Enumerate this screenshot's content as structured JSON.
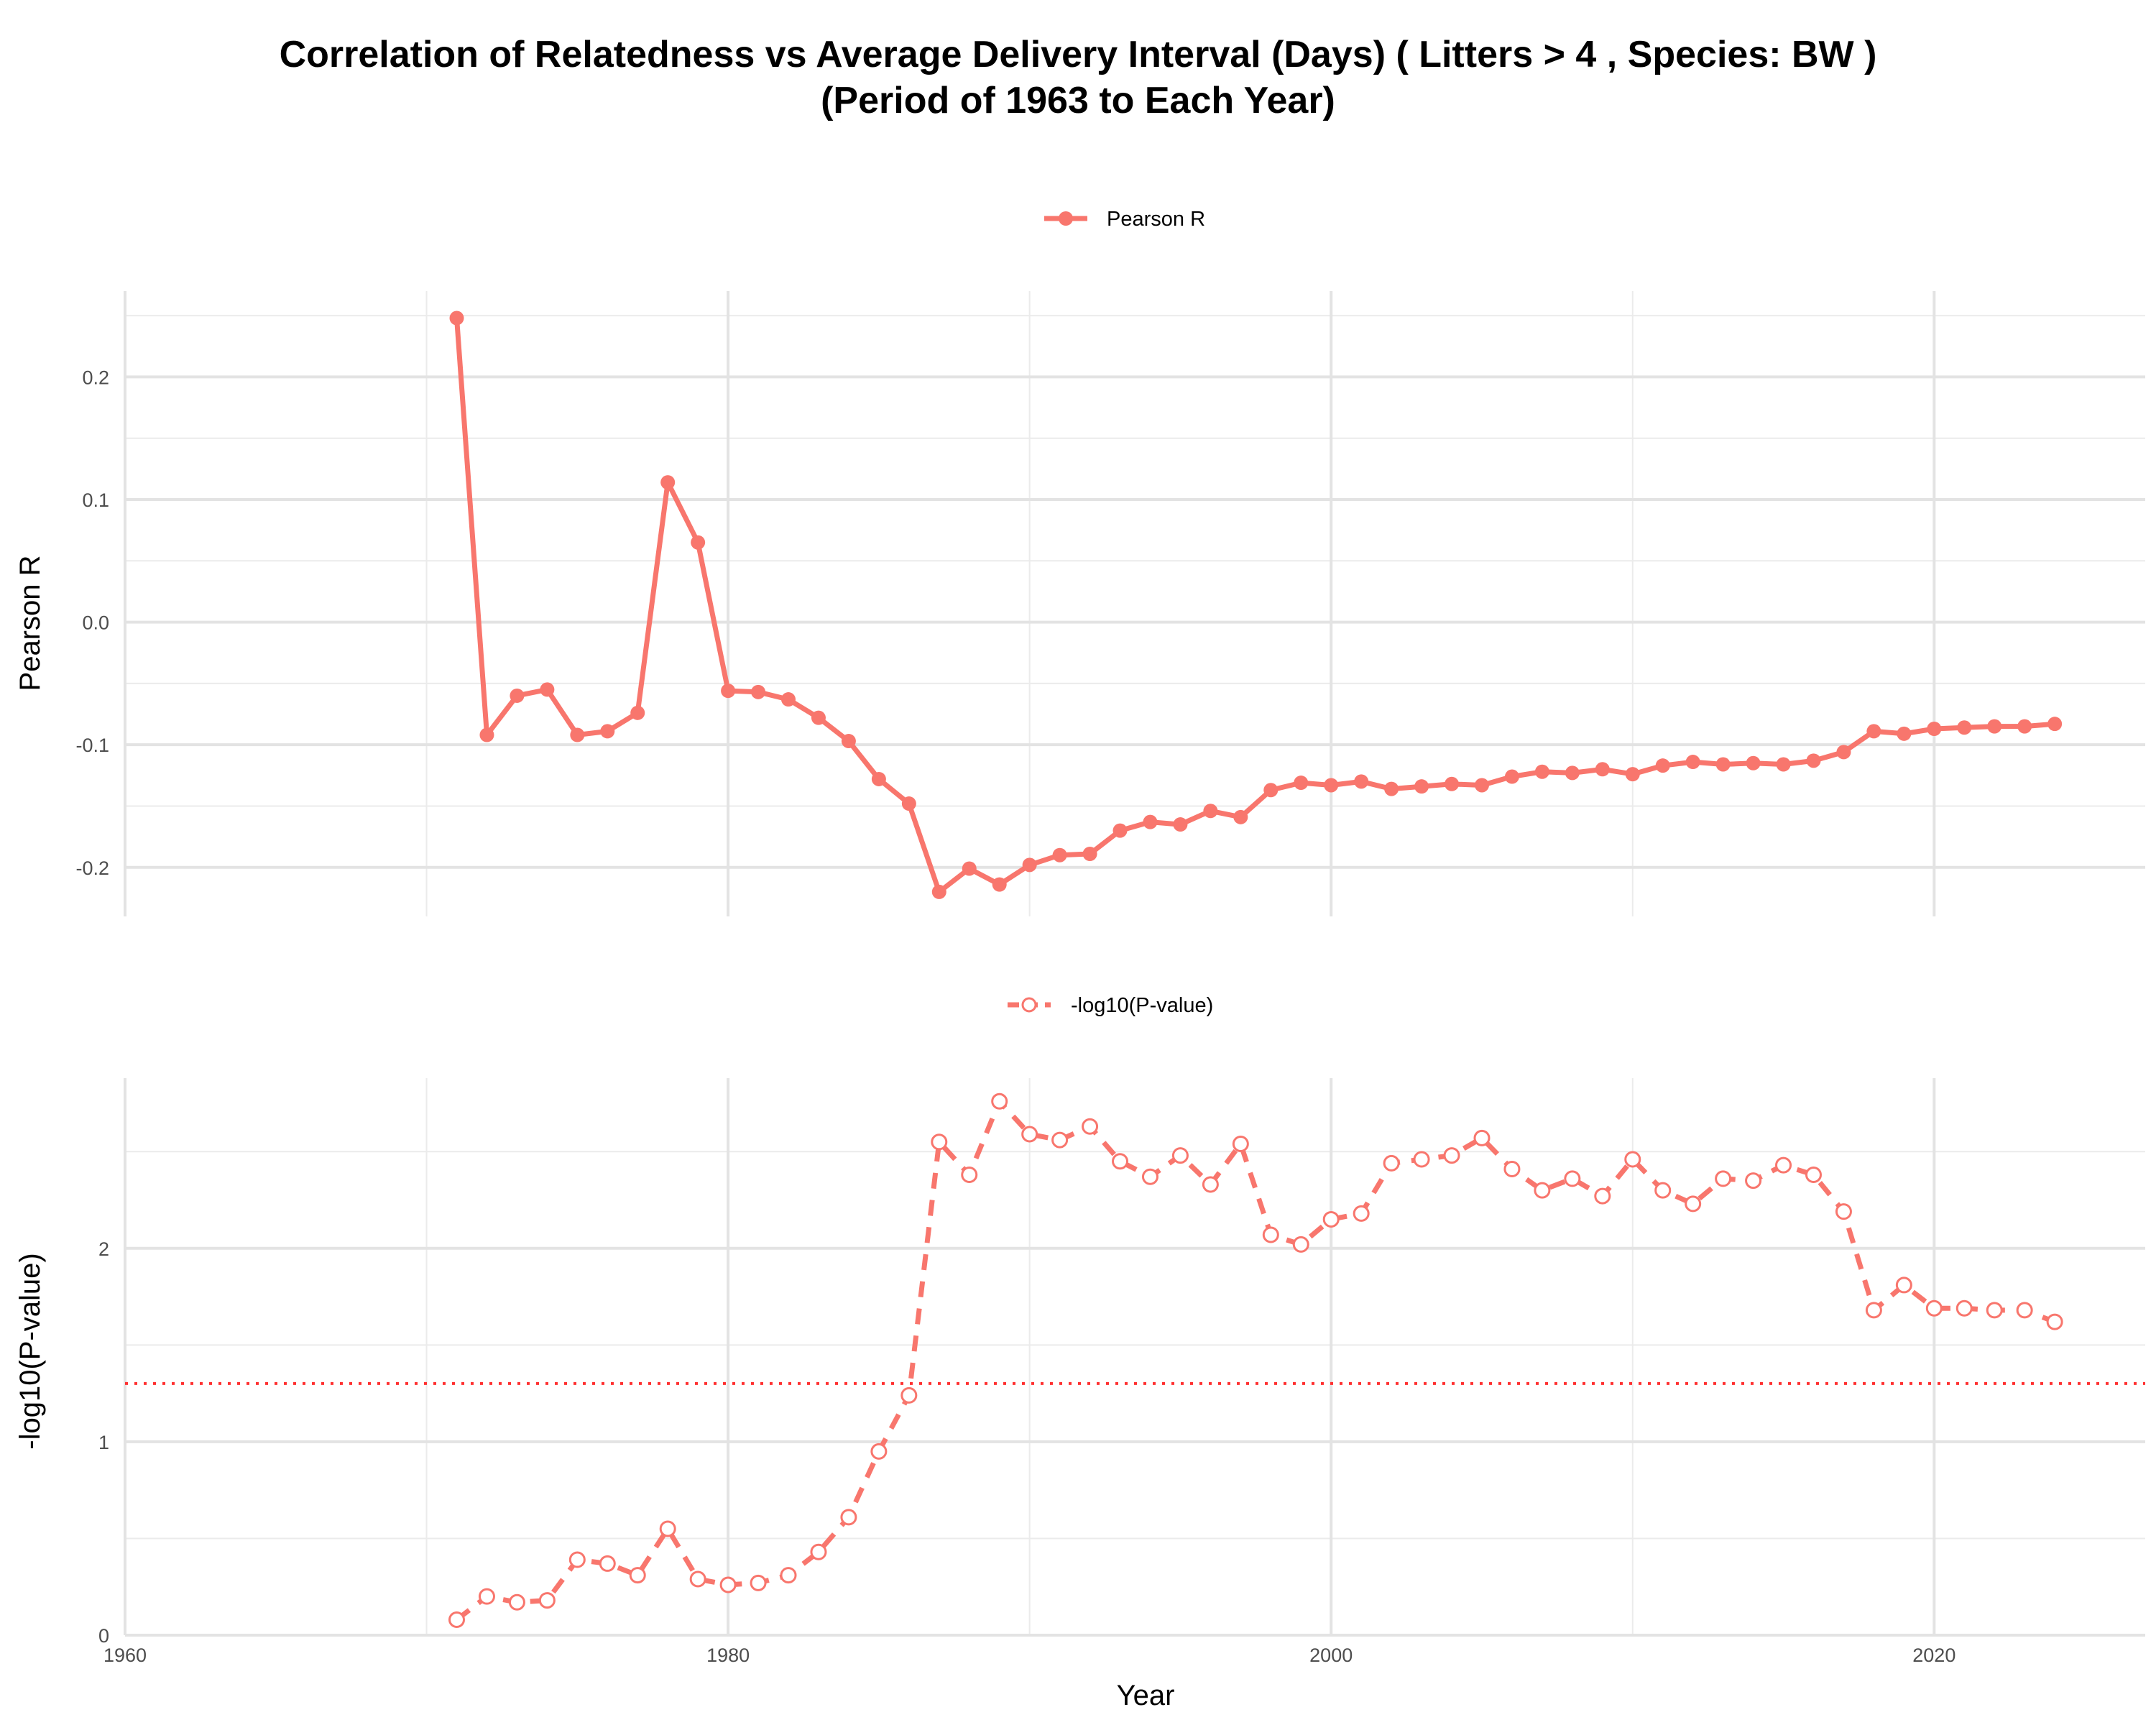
{
  "chart_data": {
    "type": "line",
    "title_lines": [
      "Correlation of Relatedness vs Average Delivery Interval (Days) ( Litters > 4 , Species: BW )",
      "(Period of 1963 to Each Year)"
    ],
    "xlabel": "Year",
    "xlim": [
      1960,
      2027
    ],
    "x_ticks": [
      "1960",
      "1980",
      "2000",
      "2020"
    ],
    "x": [
      1971,
      1972,
      1973,
      1974,
      1975,
      1976,
      1977,
      1978,
      1979,
      1980,
      1981,
      1982,
      1983,
      1984,
      1985,
      1986,
      1987,
      1988,
      1989,
      1990,
      1991,
      1992,
      1993,
      1994,
      1995,
      1996,
      1997,
      1998,
      1999,
      2000,
      2001,
      2002,
      2003,
      2004,
      2005,
      2006,
      2007,
      2008,
      2009,
      2010,
      2011,
      2012,
      2013,
      2014,
      2015,
      2016,
      2017,
      2018,
      2019,
      2020,
      2021,
      2022,
      2023,
      2024
    ],
    "color": "#F8766D",
    "panels": [
      {
        "name": "pearson",
        "ylabel": "Pearson R",
        "legend": "Pearson R",
        "ylim": [
          -0.24,
          0.27
        ],
        "y_ticks": [
          -0.2,
          -0.1,
          0.0,
          0.1,
          0.2
        ],
        "y_tick_labels": [
          "-0.2",
          "-0.1",
          "0.0",
          "0.1",
          "0.2"
        ],
        "line_style": "solid",
        "marker": "filled-circle",
        "values": [
          0.248,
          -0.092,
          -0.06,
          -0.055,
          -0.092,
          -0.089,
          -0.074,
          0.114,
          0.065,
          -0.056,
          -0.057,
          -0.063,
          -0.078,
          -0.097,
          -0.128,
          -0.148,
          -0.22,
          -0.201,
          -0.214,
          -0.198,
          -0.19,
          -0.189,
          -0.17,
          -0.163,
          -0.165,
          -0.154,
          -0.159,
          -0.137,
          -0.131,
          -0.133,
          -0.13,
          -0.136,
          -0.134,
          -0.132,
          -0.133,
          -0.126,
          -0.122,
          -0.123,
          -0.12,
          -0.124,
          -0.117,
          -0.114,
          -0.116,
          -0.115,
          -0.116,
          -0.113,
          -0.106,
          -0.089,
          -0.091,
          -0.087,
          -0.086,
          -0.085,
          -0.085,
          -0.083
        ]
      },
      {
        "name": "neglog10p",
        "ylabel": "-log10(P-value)",
        "legend": "-log10(P-value)",
        "ylim": [
          0,
          2.88
        ],
        "y_ticks": [
          0,
          1,
          2
        ],
        "y_tick_labels": [
          "0",
          "1",
          "2"
        ],
        "line_style": "dashed",
        "marker": "open-circle",
        "threshold": 1.301,
        "values": [
          0.08,
          0.2,
          0.17,
          0.18,
          0.39,
          0.37,
          0.31,
          0.55,
          0.29,
          0.26,
          0.27,
          0.31,
          0.43,
          0.61,
          0.95,
          1.24,
          2.55,
          2.38,
          2.76,
          2.59,
          2.56,
          2.63,
          2.45,
          2.37,
          2.48,
          2.33,
          2.54,
          2.07,
          2.02,
          2.15,
          2.18,
          2.44,
          2.46,
          2.48,
          2.57,
          2.41,
          2.3,
          2.36,
          2.27,
          2.46,
          2.3,
          2.23,
          2.36,
          2.35,
          2.43,
          2.38,
          2.19,
          1.68,
          1.81,
          1.69,
          1.69,
          1.68,
          1.68,
          1.62
        ]
      }
    ]
  }
}
